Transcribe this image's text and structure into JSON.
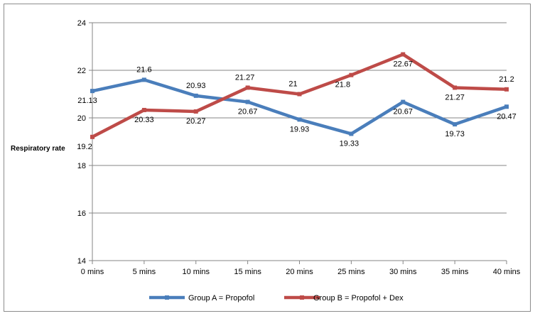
{
  "chart_data": {
    "type": "line",
    "ylabel": "Respiratory rate",
    "categories": [
      "0 mins",
      "5 mins",
      "10 mins",
      "15 mins",
      "20 mins",
      "25 mins",
      "30 mins",
      "35 mins",
      "40 mins"
    ],
    "ylim": [
      14,
      24
    ],
    "yticks": [
      14,
      16,
      18,
      20,
      22,
      24
    ],
    "grid": true,
    "legend_position": "bottom",
    "series": [
      {
        "name": "Group A = Propofol",
        "color": "#4a7ebb",
        "values": [
          21.13,
          21.6,
          20.93,
          20.67,
          19.93,
          19.33,
          20.67,
          19.73,
          20.47
        ],
        "labels": [
          "21.13",
          "21.6",
          "20.93",
          "20.67",
          "19.93",
          "19.33",
          "20.67",
          "19.73",
          "20.47"
        ]
      },
      {
        "name": "Group B = Propofol + Dex",
        "color": "#be4b48",
        "values": [
          19.2,
          20.33,
          20.27,
          21.27,
          21.0,
          21.8,
          22.67,
          21.27,
          21.2
        ],
        "labels": [
          "19.2",
          "20.33",
          "20.27",
          "21.27",
          "21",
          "21.8",
          "22.67",
          "21.27",
          "21.2"
        ]
      }
    ]
  }
}
